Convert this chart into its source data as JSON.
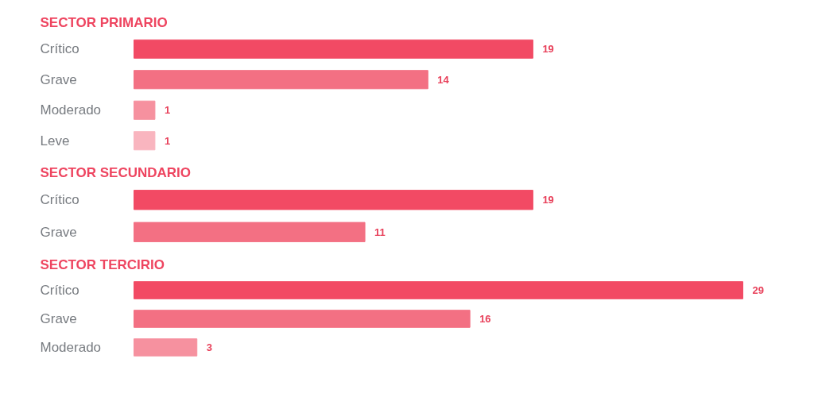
{
  "chart_data": [
    {
      "type": "bar",
      "orientation": "horizontal",
      "title": "SECTOR PRIMARIO",
      "categories": [
        "Crítico",
        "Grave",
        "Moderado",
        "Leve"
      ],
      "values": [
        19,
        14,
        1,
        1
      ],
      "colors": [
        "#f24a64",
        "#f37083",
        "#f6919f",
        "#f9b5bf"
      ],
      "data_labels": true,
      "tick_labels": false,
      "grid": false
    },
    {
      "type": "bar",
      "orientation": "horizontal",
      "title": "SECTOR SECUNDARIO",
      "categories": [
        "Crítico",
        "Grave"
      ],
      "values": [
        19,
        11
      ],
      "colors": [
        "#f24a64",
        "#f37083"
      ],
      "data_labels": true,
      "tick_labels": false,
      "grid": false
    },
    {
      "type": "bar",
      "orientation": "horizontal",
      "title": "SECTOR TERCIRIO",
      "categories": [
        "Crítico",
        "Grave",
        "Moderado"
      ],
      "values": [
        29,
        16,
        3
      ],
      "colors": [
        "#f24a64",
        "#f37083",
        "#f6919f"
      ],
      "data_labels": true,
      "tick_labels": false,
      "grid": false
    }
  ]
}
